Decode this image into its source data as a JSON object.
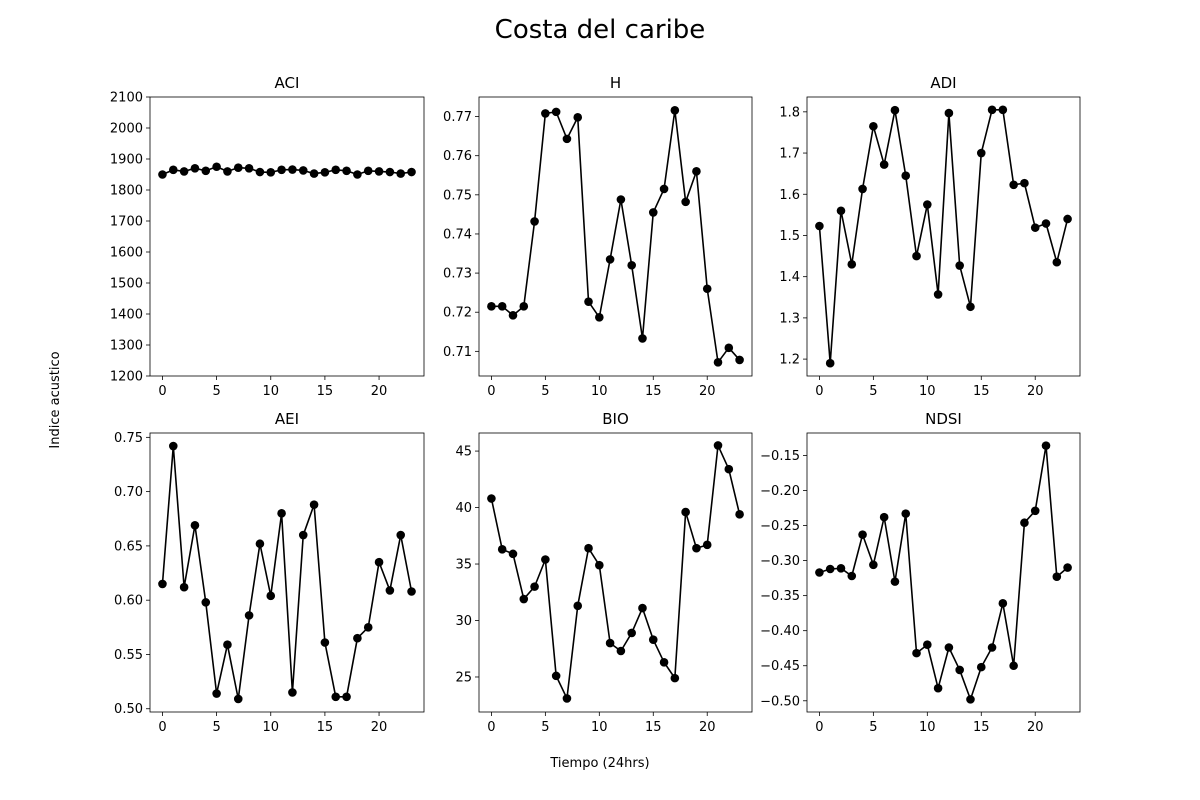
{
  "figure": {
    "title": "Costa del caribe",
    "xlabel": "Tiempo (24hrs)",
    "ylabel": "Indice acustico"
  },
  "chart_data": [
    {
      "type": "line",
      "title": "ACI",
      "x": [
        0,
        1,
        2,
        3,
        4,
        5,
        6,
        7,
        8,
        9,
        10,
        11,
        12,
        13,
        14,
        15,
        16,
        17,
        18,
        19,
        20,
        21,
        22,
        23
      ],
      "series": [
        {
          "values": [
            1850,
            1865,
            1860,
            1870,
            1862,
            1875,
            1860,
            1872,
            1870,
            1858,
            1857,
            1865,
            1866,
            1863,
            1853,
            1857,
            1865,
            1862,
            1850,
            1862,
            1860,
            1858,
            1853,
            1858
          ]
        }
      ],
      "xticks": [
        0,
        5,
        10,
        15,
        20
      ],
      "yticks": [
        1200,
        1300,
        1400,
        1500,
        1600,
        1700,
        1800,
        1900,
        2000,
        2100
      ],
      "ylim": [
        1200,
        2100
      ],
      "xlim": [
        -1.15,
        24.15
      ],
      "color": "#000000"
    },
    {
      "type": "line",
      "title": "H",
      "x": [
        0,
        1,
        2,
        3,
        4,
        5,
        6,
        7,
        8,
        9,
        10,
        11,
        12,
        13,
        14,
        15,
        16,
        17,
        18,
        19,
        20,
        21,
        22,
        23
      ],
      "series": [
        {
          "values": [
            0.7215,
            0.7215,
            0.7192,
            0.7215,
            0.7432,
            0.7708,
            0.7712,
            0.7643,
            0.7698,
            0.7227,
            0.7187,
            0.7335,
            0.7488,
            0.732,
            0.7133,
            0.7455,
            0.7515,
            0.7716,
            0.7482,
            0.756,
            0.726,
            0.7072,
            0.7109,
            0.7078
          ]
        }
      ],
      "xticks": [
        0,
        5,
        10,
        15,
        20
      ],
      "yticks": [
        0.71,
        0.72,
        0.73,
        0.74,
        0.75,
        0.76,
        0.77
      ],
      "ylim": [
        0.7037,
        0.775
      ],
      "xlim": [
        -1.15,
        24.15
      ],
      "color": "#000000"
    },
    {
      "type": "line",
      "title": "ADI",
      "x": [
        0,
        1,
        2,
        3,
        4,
        5,
        6,
        7,
        8,
        9,
        10,
        11,
        12,
        13,
        14,
        15,
        16,
        17,
        18,
        19,
        20,
        21,
        22,
        23
      ],
      "series": [
        {
          "values": [
            1.523,
            1.19,
            1.56,
            1.43,
            1.613,
            1.765,
            1.672,
            1.804,
            1.645,
            1.45,
            1.575,
            1.357,
            1.797,
            1.427,
            1.327,
            1.7,
            1.805,
            1.805,
            1.623,
            1.627,
            1.519,
            1.529,
            1.435,
            1.54
          ]
        }
      ],
      "xticks": [
        0,
        5,
        10,
        15,
        20
      ],
      "yticks": [
        1.2,
        1.3,
        1.4,
        1.5,
        1.6,
        1.7,
        1.8
      ],
      "ylim": [
        1.159,
        1.836
      ],
      "xlim": [
        -1.15,
        24.15
      ],
      "color": "#000000"
    },
    {
      "type": "line",
      "title": "AEI",
      "x": [
        0,
        1,
        2,
        3,
        4,
        5,
        6,
        7,
        8,
        9,
        10,
        11,
        12,
        13,
        14,
        15,
        16,
        17,
        18,
        19,
        20,
        21,
        22,
        23
      ],
      "series": [
        {
          "values": [
            0.615,
            0.742,
            0.612,
            0.669,
            0.598,
            0.514,
            0.559,
            0.509,
            0.586,
            0.652,
            0.604,
            0.68,
            0.515,
            0.66,
            0.688,
            0.561,
            0.511,
            0.511,
            0.565,
            0.575,
            0.635,
            0.609,
            0.66,
            0.608
          ]
        }
      ],
      "xticks": [
        0,
        5,
        10,
        15,
        20
      ],
      "yticks": [
        0.5,
        0.55,
        0.6,
        0.65,
        0.7,
        0.75
      ],
      "ylim": [
        0.497,
        0.754
      ],
      "xlim": [
        -1.15,
        24.15
      ],
      "color": "#000000"
    },
    {
      "type": "line",
      "title": "BIO",
      "x": [
        0,
        1,
        2,
        3,
        4,
        5,
        6,
        7,
        8,
        9,
        10,
        11,
        12,
        13,
        14,
        15,
        16,
        17,
        18,
        19,
        20,
        21,
        22,
        23
      ],
      "series": [
        {
          "values": [
            40.8,
            36.3,
            35.9,
            31.9,
            33.0,
            35.4,
            25.1,
            23.1,
            31.3,
            36.4,
            34.9,
            28.0,
            27.3,
            28.9,
            31.1,
            28.3,
            26.3,
            24.9,
            39.6,
            36.4,
            36.7,
            45.5,
            43.4,
            39.4
          ]
        }
      ],
      "xticks": [
        0,
        5,
        10,
        15,
        20
      ],
      "yticks": [
        25,
        30,
        35,
        40,
        45
      ],
      "ylim": [
        21.9,
        46.6
      ],
      "xlim": [
        -1.15,
        24.15
      ],
      "color": "#000000"
    },
    {
      "type": "line",
      "title": "NDSI",
      "x": [
        0,
        1,
        2,
        3,
        4,
        5,
        6,
        7,
        8,
        9,
        10,
        11,
        12,
        13,
        14,
        15,
        16,
        17,
        18,
        19,
        20,
        21,
        22,
        23
      ],
      "series": [
        {
          "values": [
            -0.317,
            -0.312,
            -0.311,
            -0.322,
            -0.263,
            -0.306,
            -0.238,
            -0.33,
            -0.233,
            -0.432,
            -0.42,
            -0.482,
            -0.424,
            -0.456,
            -0.498,
            -0.452,
            -0.424,
            -0.361,
            -0.45,
            -0.246,
            -0.229,
            -0.136,
            -0.323,
            -0.31
          ]
        }
      ],
      "xticks": [
        0,
        5,
        10,
        15,
        20
      ],
      "yticks": [
        -0.5,
        -0.45,
        -0.4,
        -0.35,
        -0.3,
        -0.25,
        -0.2,
        -0.15
      ],
      "ylim": [
        -0.516,
        -0.118
      ],
      "xlim": [
        -1.15,
        24.15
      ],
      "color": "#000000"
    }
  ]
}
